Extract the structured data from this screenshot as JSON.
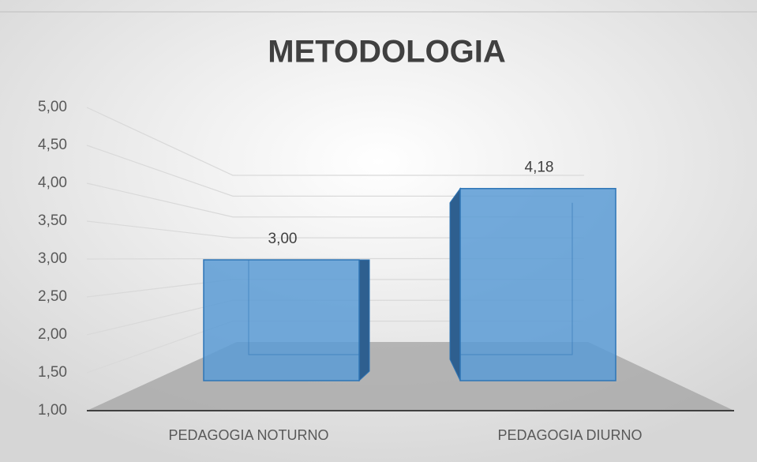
{
  "chart_data": {
    "type": "bar3d",
    "title": "METODOLOGIA",
    "categories": [
      "PEDAGOGIA NOTURNO",
      "PEDAGOGIA DIURNO"
    ],
    "values": [
      3.0,
      4.18
    ],
    "value_labels": [
      "3,00",
      "4,18"
    ],
    "color": "#5b9bd5",
    "ylim": [
      1,
      5
    ],
    "yticks": [
      {
        "value": 1,
        "label": "1,00"
      },
      {
        "value": 1.5,
        "label": "1,50"
      },
      {
        "value": 2,
        "label": "2,00"
      },
      {
        "value": 2.5,
        "label": "2,50"
      },
      {
        "value": 3,
        "label": "3,00"
      },
      {
        "value": 3.5,
        "label": "3,50"
      },
      {
        "value": 4,
        "label": "4,00"
      },
      {
        "value": 4.5,
        "label": "4,50"
      },
      {
        "value": 5,
        "label": "5,00"
      }
    ],
    "grid": true
  }
}
